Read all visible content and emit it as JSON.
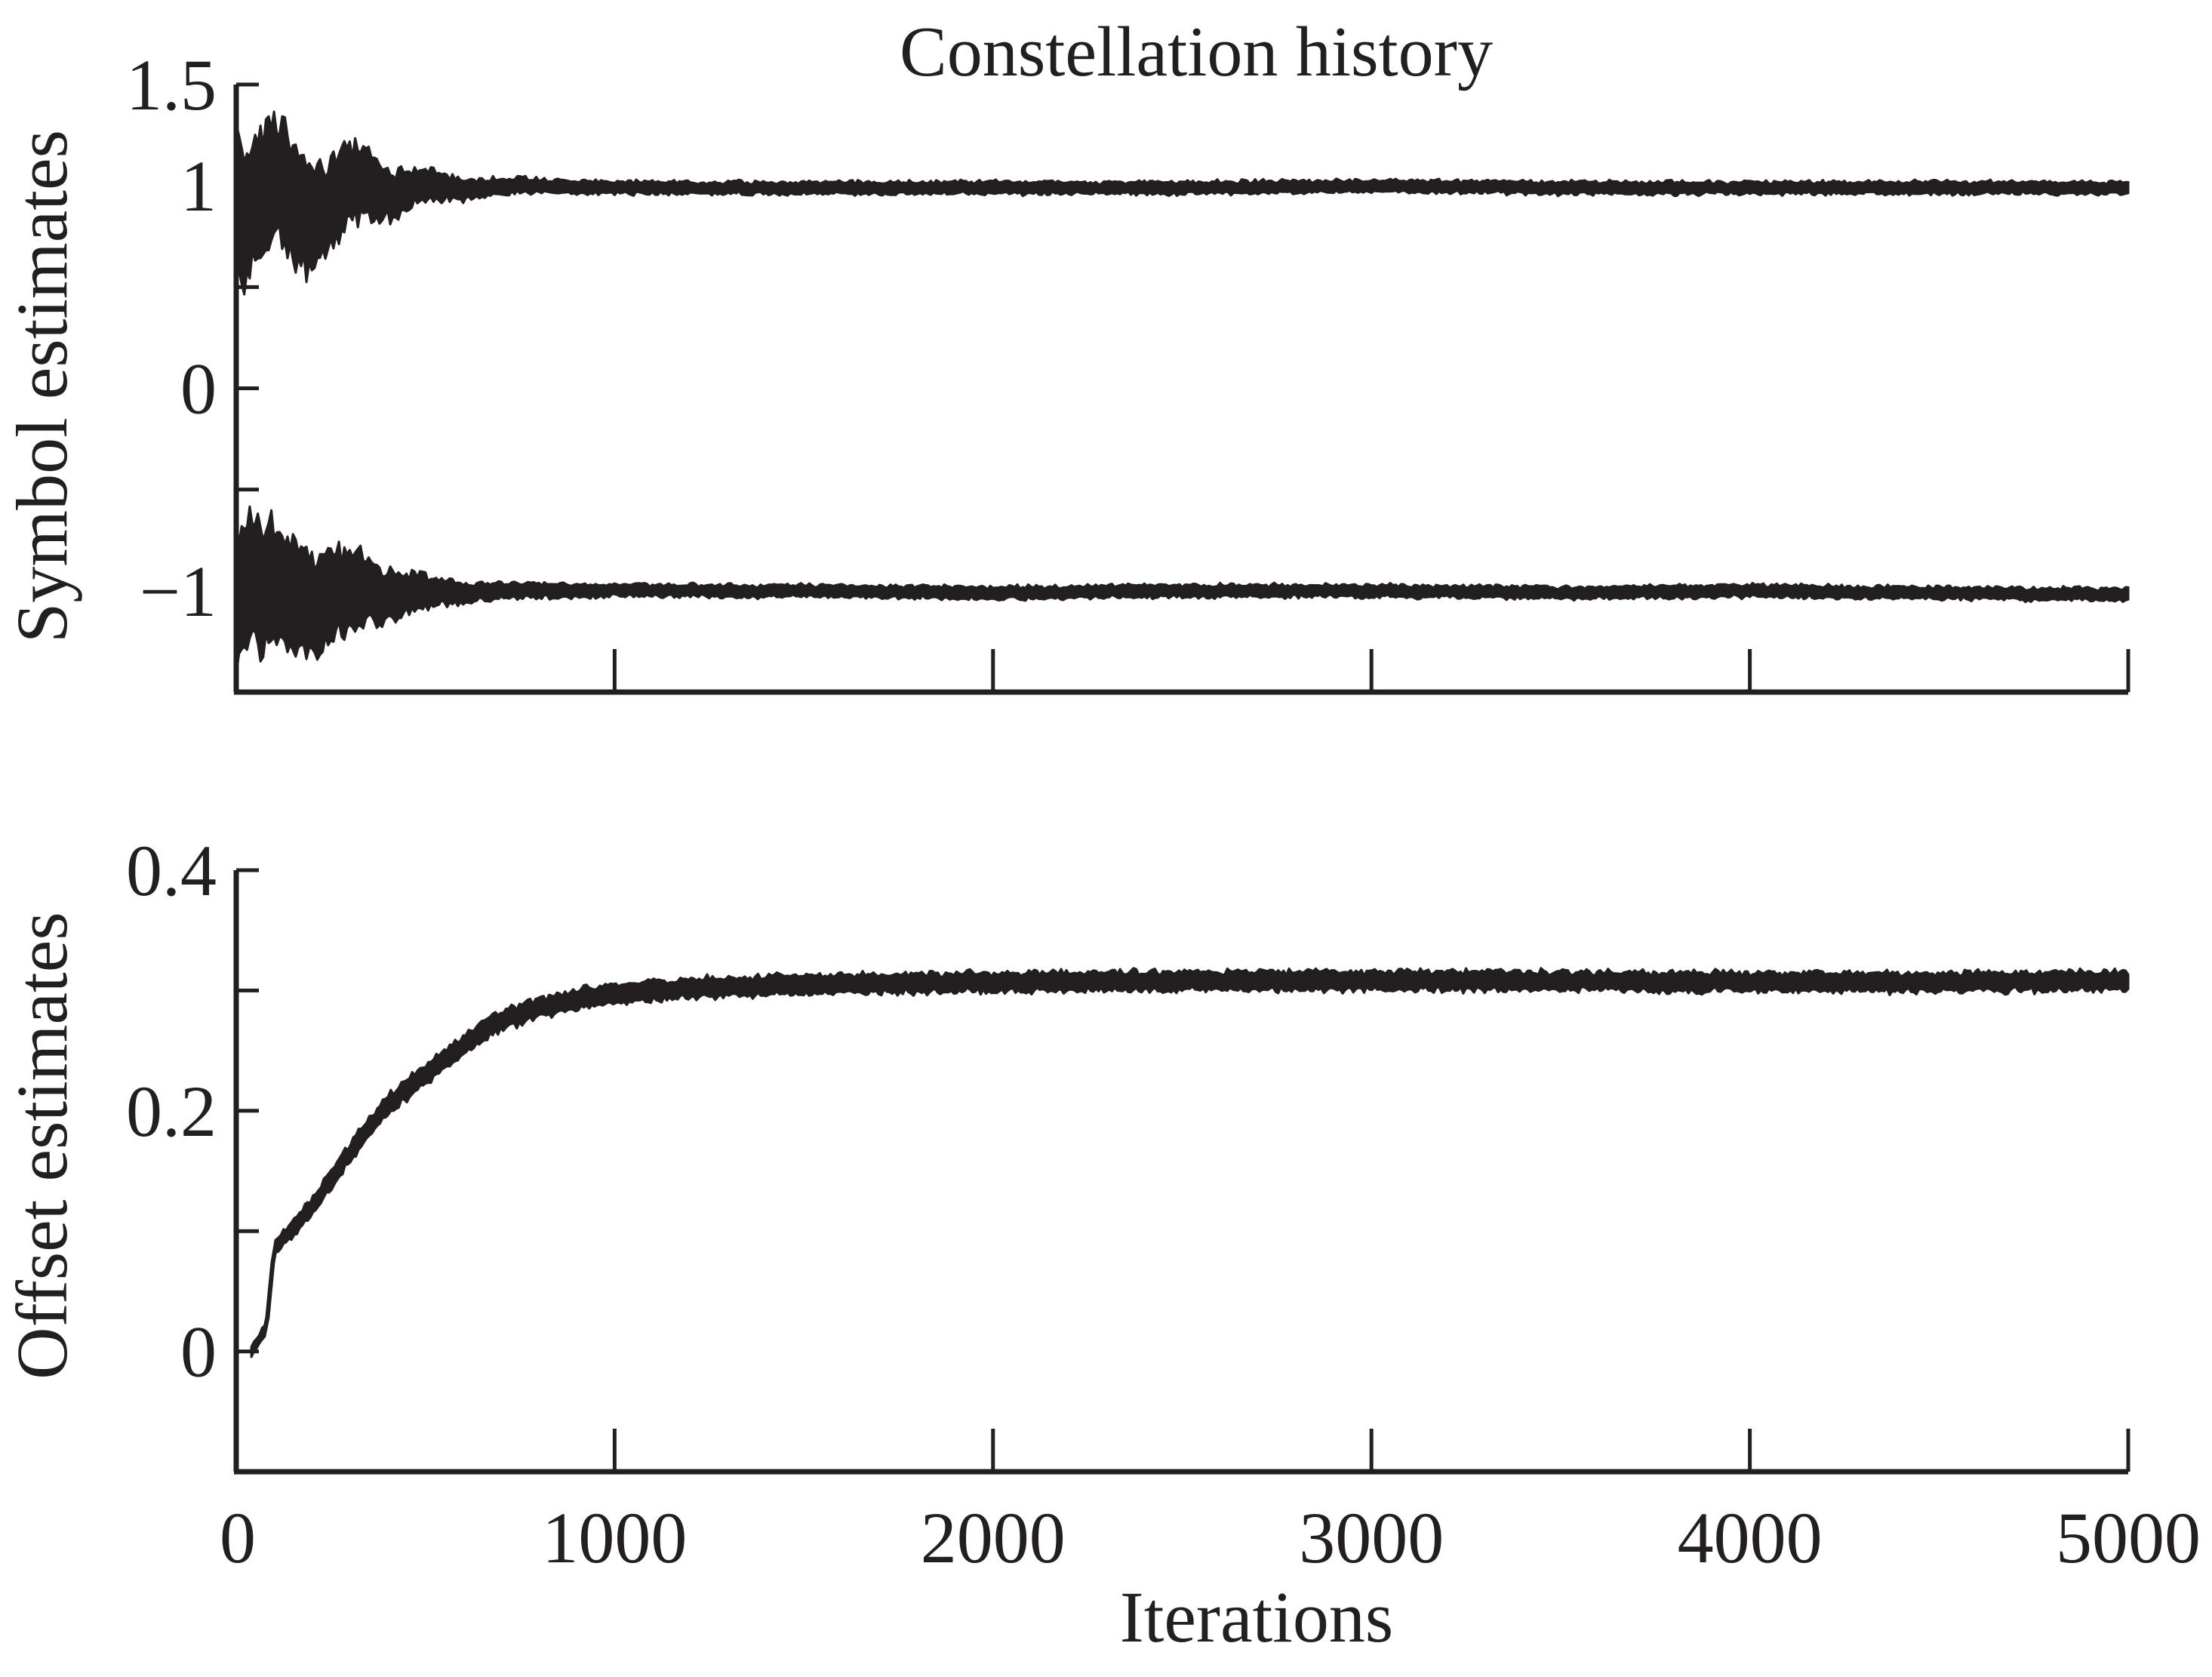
{
  "chart_data": [
    {
      "type": "line",
      "title": "Constellation history",
      "xlabel": "",
      "ylabel": "Symbol estimates",
      "xlim": [
        0,
        5000
      ],
      "ylim": [
        -1.5,
        1.5
      ],
      "x_ticks": [
        0,
        1000,
        2000,
        3000,
        4000,
        5000
      ],
      "x_tick_labels": [],
      "y_ticks": [
        -1.5,
        -1,
        -0.5,
        0,
        0.5,
        1,
        1.5
      ],
      "y_tick_labels": [
        {
          "value": 1.5,
          "label": "1.5"
        },
        {
          "value": 1,
          "label": "1"
        },
        {
          "value": 0,
          "label": "0"
        },
        {
          "value": -1,
          "label": "−1"
        }
      ],
      "grid": false,
      "legend": "none",
      "color": "#231f20",
      "series": [
        {
          "x": [
            0,
            100,
            200,
            300,
            400,
            500,
            600,
            700,
            800,
            1000,
            1500,
            2000,
            2500,
            3000,
            3500,
            4000,
            4500,
            5000
          ],
          "y": [
            0.85,
            1.05,
            0.82,
            1.03,
            0.95,
            1.01,
            0.98,
            1.0,
            1.0,
            0.99,
            0.99,
            0.99,
            0.99,
            1.0,
            0.99,
            0.99,
            0.99,
            0.99
          ],
          "spread": [
            0.35,
            0.3,
            0.25,
            0.2,
            0.12,
            0.08,
            0.05,
            0.04,
            0.035,
            0.03,
            0.03,
            0.03,
            0.03,
            0.03,
            0.03,
            0.03,
            0.03,
            0.03
          ]
        },
        {
          "x": [
            0,
            100,
            200,
            300,
            400,
            500,
            600,
            700,
            800,
            1000,
            1500,
            2000,
            2500,
            3000,
            3500,
            4000,
            4500,
            5000
          ],
          "y": [
            -1.0,
            -0.95,
            -1.08,
            -0.98,
            -1.03,
            -1.0,
            -1.01,
            -1.0,
            -1.0,
            -1.0,
            -1.0,
            -1.01,
            -1.0,
            -1.0,
            -1.01,
            -1.0,
            -1.01,
            -1.02
          ],
          "spread": [
            0.35,
            0.3,
            0.25,
            0.2,
            0.12,
            0.08,
            0.05,
            0.04,
            0.035,
            0.03,
            0.03,
            0.03,
            0.03,
            0.03,
            0.03,
            0.03,
            0.03,
            0.03
          ]
        }
      ]
    },
    {
      "type": "line",
      "title": "",
      "xlabel": "Iterations",
      "ylabel": "Offset estimates",
      "xlim": [
        0,
        5000
      ],
      "ylim": [
        -0.1,
        0.4
      ],
      "x_ticks": [
        0,
        1000,
        2000,
        3000,
        4000,
        5000
      ],
      "x_tick_labels": [
        "0",
        "1000",
        "2000",
        "3000",
        "4000",
        "5000"
      ],
      "y_ticks": [
        0,
        0.1,
        0.2,
        0.3,
        0.4
      ],
      "y_tick_labels": [
        {
          "value": 0.4,
          "label": "0.4"
        },
        {
          "value": 0.2,
          "label": "0.2"
        },
        {
          "value": 0,
          "label": "0"
        }
      ],
      "grid": false,
      "legend": "none",
      "color": "#231f20",
      "series": [
        {
          "x": [
            40,
            80,
            100,
            200,
            300,
            400,
            500,
            600,
            700,
            800,
            900,
            1000,
            1200,
            1500,
            2000,
            2500,
            3000,
            3500,
            4000,
            4500,
            5000
          ],
          "y": [
            0.0,
            0.02,
            0.085,
            0.12,
            0.165,
            0.205,
            0.23,
            0.255,
            0.275,
            0.285,
            0.293,
            0.298,
            0.302,
            0.305,
            0.307,
            0.308,
            0.308,
            0.308,
            0.307,
            0.307,
            0.308
          ],
          "spread": [
            0.004,
            0.005,
            0.006,
            0.007,
            0.008,
            0.008,
            0.008,
            0.008,
            0.008,
            0.008,
            0.008,
            0.008,
            0.008,
            0.008,
            0.008,
            0.008,
            0.008,
            0.008,
            0.008,
            0.008,
            0.008
          ]
        }
      ]
    }
  ]
}
